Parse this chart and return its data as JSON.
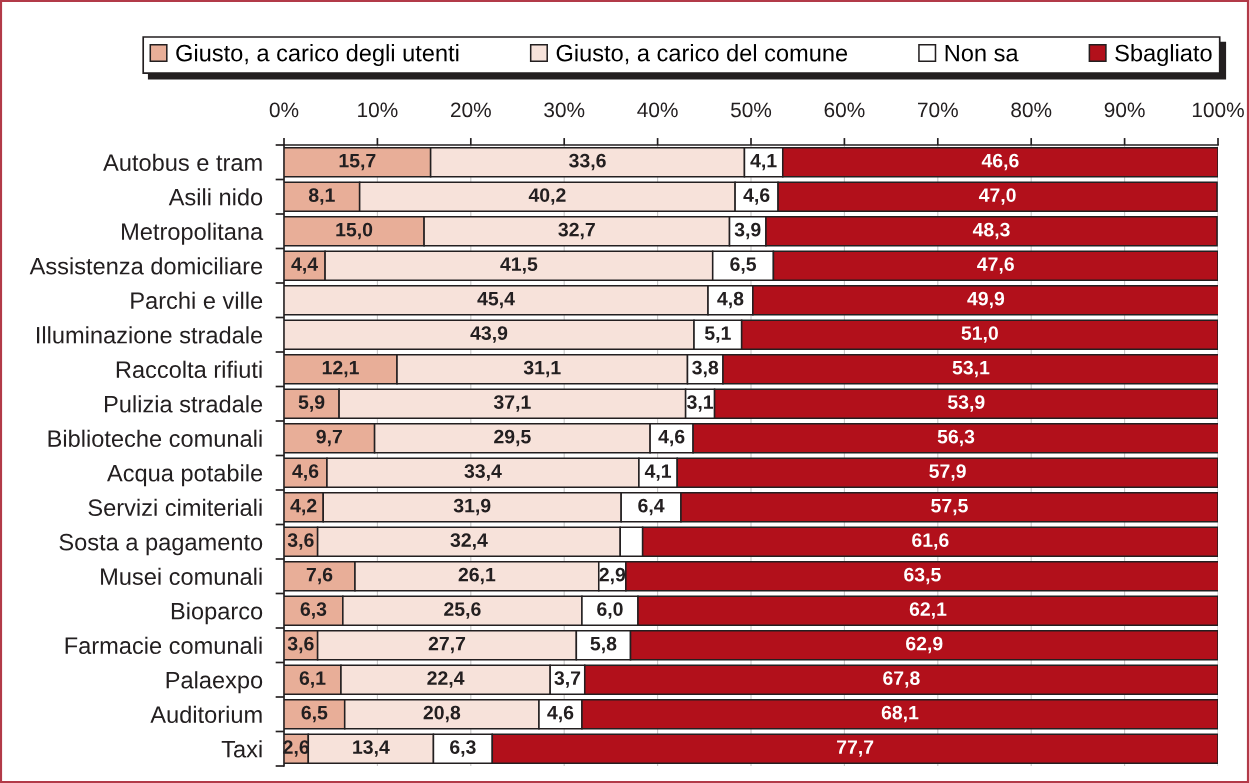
{
  "chart_data": {
    "type": "bar",
    "orientation": "horizontal",
    "stacked": true,
    "categories": [
      "Autobus e tram",
      "Asili nido",
      "Metropolitana",
      "Assistenza domiciliare",
      "Parchi e ville",
      "Illuminazione stradale",
      "Raccolta rifiuti",
      "Pulizia stradale",
      "Biblioteche comunali",
      "Acqua potabile",
      "Servizi cimiteriali",
      "Sosta a pagamento",
      "Musei comunali",
      "Bioparco",
      "Farmacie comunali",
      "Palaexpo",
      "Auditorium",
      "Taxi"
    ],
    "series": [
      {
        "name": "Giusto, a carico degli utenti",
        "color": "#e8ae98",
        "values": [
          15.7,
          8.1,
          15.0,
          4.4,
          null,
          null,
          12.1,
          5.9,
          9.7,
          4.6,
          4.2,
          3.6,
          7.6,
          6.3,
          3.6,
          6.1,
          6.5,
          2.6
        ],
        "value_labels": [
          "15,7",
          "8,1",
          "15,0",
          "4,4",
          null,
          null,
          "12,1",
          "5,9",
          "9,7",
          "4,6",
          "4,2",
          "3,6",
          "7,6",
          "6,3",
          "3,6",
          "6,1",
          "6,5",
          "2,6"
        ]
      },
      {
        "name": "Giusto, a carico del comune",
        "color": "#f7e2da",
        "values": [
          33.6,
          40.2,
          32.7,
          41.5,
          45.4,
          43.9,
          31.1,
          37.1,
          29.5,
          33.4,
          31.9,
          32.4,
          26.1,
          25.6,
          27.7,
          22.4,
          20.8,
          13.4
        ],
        "value_labels": [
          "33,6",
          "40,2",
          "32,7",
          "41,5",
          "45,4",
          "43,9",
          "31,1",
          "37,1",
          "29,5",
          "33,4",
          "31,9",
          "32,4",
          "26,1",
          "25,6",
          "27,7",
          "22,4",
          "20,8",
          "13,4"
        ]
      },
      {
        "name": "Non sa",
        "color": "#ffffff",
        "values": [
          4.1,
          4.6,
          3.9,
          6.5,
          4.8,
          5.1,
          3.8,
          3.1,
          4.6,
          4.1,
          6.4,
          2.4,
          2.9,
          6.0,
          5.8,
          3.7,
          4.6,
          6.3
        ],
        "value_labels": [
          "4,1",
          "4,6",
          "3,9",
          "6,5",
          "4,8",
          "5,1",
          "3,8",
          "3,1",
          "4,6",
          "4,1",
          "6,4",
          null,
          "2,9",
          "6,0",
          "5,8",
          "3,7",
          "4,6",
          "6,3"
        ]
      },
      {
        "name": "Sbagliato",
        "color": "#b2101b",
        "values": [
          46.6,
          47.0,
          48.3,
          47.6,
          49.9,
          51.0,
          53.1,
          53.9,
          56.3,
          57.9,
          57.5,
          61.6,
          63.5,
          62.1,
          62.9,
          67.8,
          68.1,
          77.7
        ],
        "value_labels": [
          "46,6",
          "47,0",
          "48,3",
          "47,6",
          "49,9",
          "51,0",
          "53,1",
          "53,9",
          "56,3",
          "57,9",
          "57,5",
          "61,6",
          "63,5",
          "62,1",
          "62,9",
          "67,8",
          "68,1",
          "77,7"
        ]
      }
    ],
    "xlim": [
      0,
      100
    ],
    "xticks": [
      {
        "value": 0,
        "label": "0%"
      },
      {
        "value": 10,
        "label": "10%"
      },
      {
        "value": 20,
        "label": "20%"
      },
      {
        "value": 30,
        "label": "30%"
      },
      {
        "value": 40,
        "label": "40%"
      },
      {
        "value": 50,
        "label": "50%"
      },
      {
        "value": 60,
        "label": "60%"
      },
      {
        "value": 70,
        "label": "70%"
      },
      {
        "value": 80,
        "label": "80%"
      },
      {
        "value": 90,
        "label": "90%"
      },
      {
        "value": 100,
        "label": "100%"
      }
    ],
    "grid": "x",
    "legend": "top"
  }
}
